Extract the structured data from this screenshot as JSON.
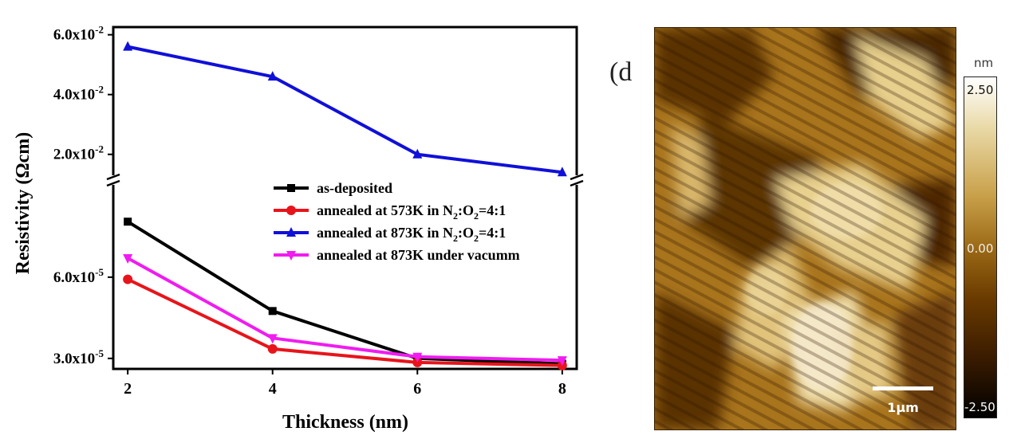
{
  "chart_data": {
    "type": "line",
    "xlabel": "Thickness (nm)",
    "ylabel": "Resistivity (Ωcm)",
    "x": [
      2,
      4,
      6,
      8
    ],
    "xlim": [
      1.8,
      8.2
    ],
    "x_ticks": [
      "2",
      "4",
      "6",
      "8"
    ],
    "axis_break": true,
    "upper_segment": {
      "ylim": [
        0.013,
        0.0615
      ],
      "ticks": [
        {
          "value": 0.02,
          "mant": "2.0x10",
          "exp": "-2"
        },
        {
          "value": 0.04,
          "mant": "4.0x10",
          "exp": "-2"
        },
        {
          "value": 0.06,
          "mant": "6.0x10",
          "exp": "-2"
        }
      ]
    },
    "lower_segment": {
      "ylim": [
        2.7e-05,
        9.35e-05
      ],
      "ticks": [
        {
          "value": 3e-05,
          "mant": "3.0x10",
          "exp": "-5"
        },
        {
          "value": 6e-05,
          "mant": "6.0x10",
          "exp": "-5"
        }
      ]
    },
    "legend_position": "center-right",
    "series": [
      {
        "name_parts": [
          "as-deposited"
        ],
        "color": "#000000",
        "marker": "square",
        "segment": "lower",
        "values": [
          8.05e-05,
          4.75e-05,
          3e-05,
          2.8e-05
        ]
      },
      {
        "name_parts": [
          "annealed at 573K in N",
          "2",
          ":O",
          "2",
          "=4:1"
        ],
        "color": "#e8141b",
        "marker": "circle",
        "segment": "lower",
        "values": [
          5.92e-05,
          3.35e-05,
          2.85e-05,
          2.74e-05
        ]
      },
      {
        "name_parts": [
          "annealed at 873K in N",
          "2",
          ":O",
          "2",
          "=4:1"
        ],
        "color": "#1010d8",
        "marker": "triangle-up",
        "segment": "upper",
        "values": [
          0.056,
          0.046,
          0.02,
          0.014
        ]
      },
      {
        "name_parts": [
          "annealed at 873K under vacumm"
        ],
        "color": "#f01cf0",
        "marker": "triangle-down",
        "segment": "lower",
        "values": [
          6.7e-05,
          3.75e-05,
          3.06e-05,
          2.93e-05
        ]
      }
    ]
  },
  "afm_image": {
    "panel_label": "(d",
    "scale_bar_label": "1μm",
    "colorbar": {
      "unit": "nm",
      "max": "2.50",
      "mid": "0.00",
      "min": "-2.50"
    },
    "colors": {
      "dark": "#3b1c00",
      "mid": "#9c6a16",
      "light": "#f2e2b0"
    }
  }
}
